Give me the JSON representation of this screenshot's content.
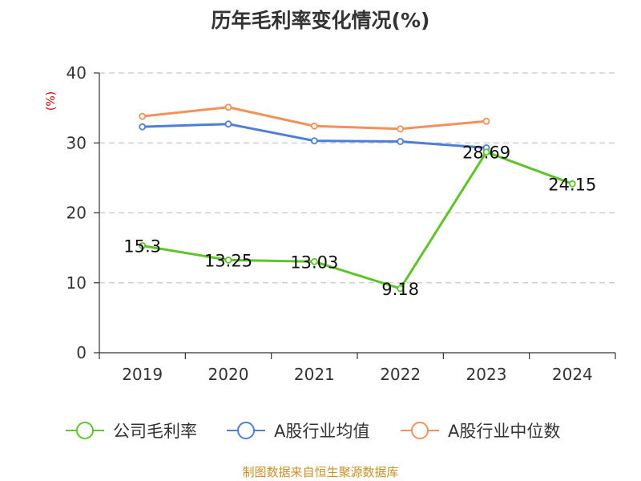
{
  "chart_data": {
    "type": "line",
    "title": "历年毛利率变化情况(%)",
    "y_unit": "(%)",
    "categories": [
      "2019",
      "2020",
      "2021",
      "2022",
      "2023",
      "2024"
    ],
    "ylim": [
      0,
      40
    ],
    "yticks": [
      0,
      10,
      20,
      30,
      40
    ],
    "grid": true,
    "legend_position": "bottom",
    "series": [
      {
        "name": "公司毛利率",
        "color": "#5ec428",
        "values": [
          15.3,
          13.25,
          13.03,
          9.18,
          28.69,
          24.15
        ],
        "labels": [
          "15.3",
          "13.25",
          "13.03",
          "9.18",
          "28.69",
          "24.15"
        ]
      },
      {
        "name": "A股行业均值",
        "color": "#4d7fd8",
        "values": [
          32.3,
          32.7,
          30.3,
          30.2,
          29.3,
          null
        ]
      },
      {
        "name": "A股行业中位数",
        "color": "#f4905a",
        "values": [
          33.8,
          35.1,
          32.4,
          32.0,
          33.1,
          null
        ]
      }
    ]
  },
  "source": "制图数据来自恒生聚源数据库"
}
